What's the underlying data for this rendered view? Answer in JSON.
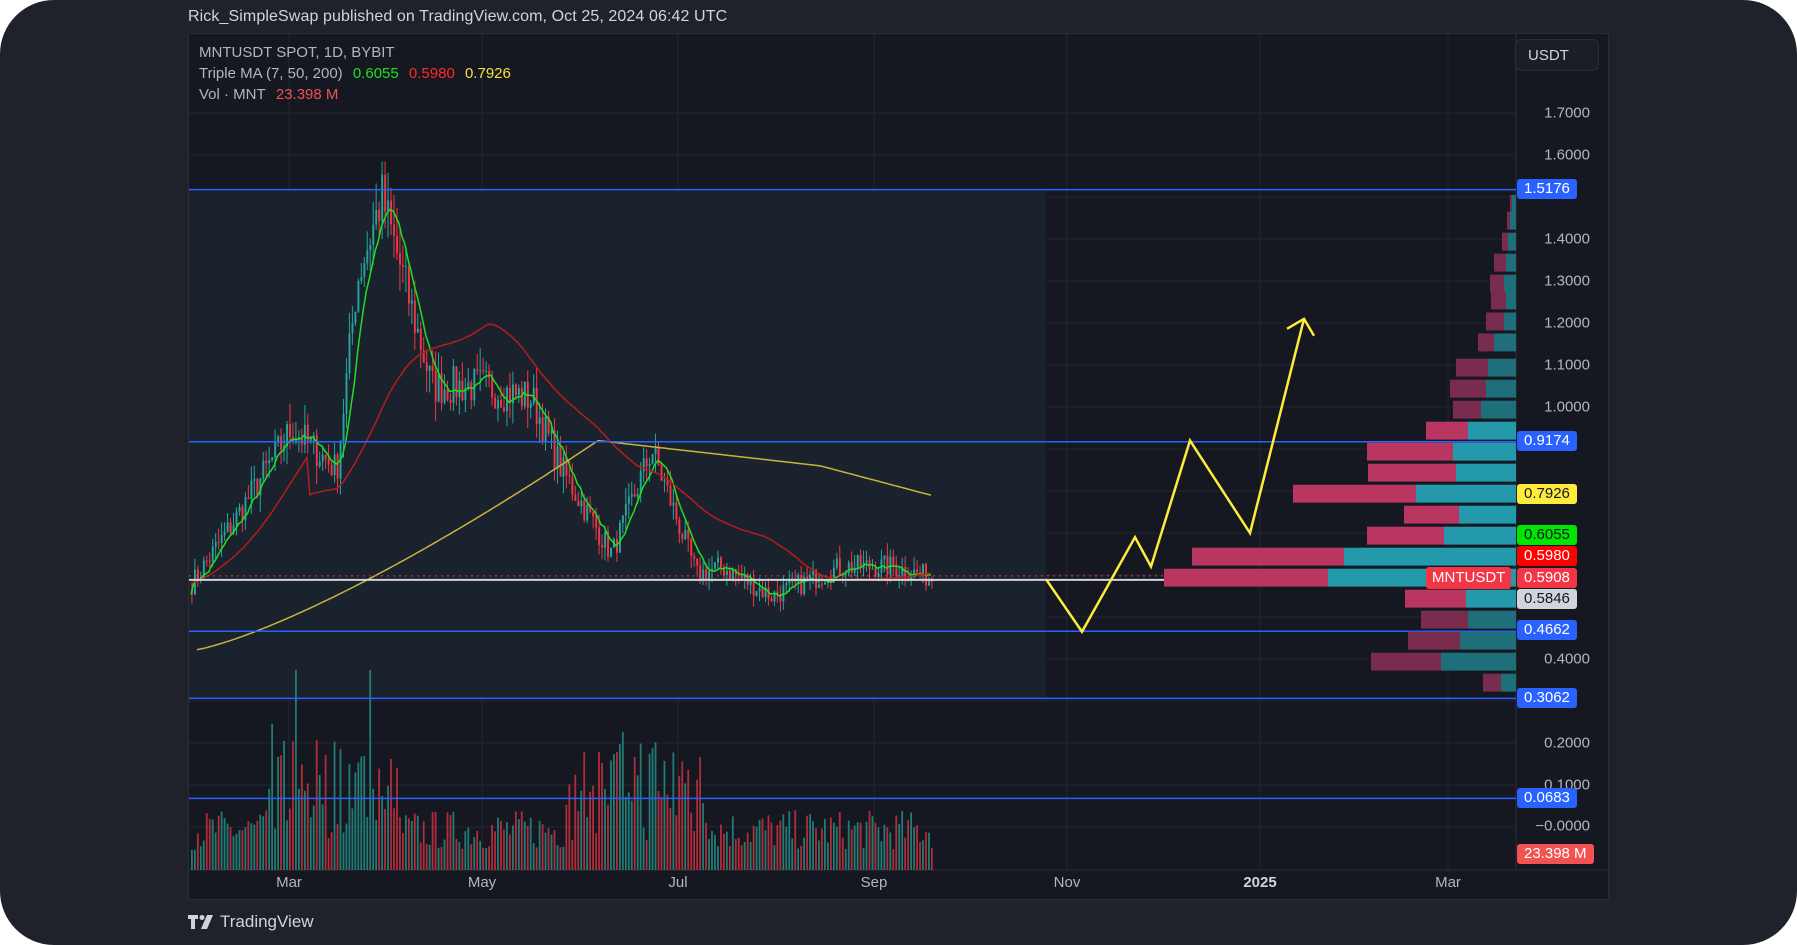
{
  "header": {
    "published": "Rick_SimpleSwap published on TradingView.com, Oct 25, 2024 06:42 UTC"
  },
  "legend": {
    "symbol": "MNTUSDT SPOT, 1D, BYBIT",
    "ma_label": "Triple MA (7, 50, 200)",
    "ma7": "0.6055",
    "ma50": "0.5980",
    "ma200": "0.7926",
    "vol_label": "Vol · MNT",
    "vol_value": "23.398 M"
  },
  "currency_button": "USDT",
  "price_axis": {
    "ticks": [
      "1.7000",
      "1.6000",
      "1.4000",
      "1.3000",
      "1.2000",
      "1.1000",
      "1.0000",
      "0.4000",
      "0.2000",
      "0.1000",
      "−0.0000"
    ],
    "labels": {
      "resistance_top": "1.5176",
      "resistance_mid": "0.9174",
      "ma200": "0.7926",
      "ma7": "0.6055",
      "ma50": "0.5980",
      "last_price": "0.5908",
      "prev_close": "0.5846",
      "support_1": "0.4662",
      "support_2": "0.3062",
      "support_3": "0.0683",
      "volume": "23.398 M"
    },
    "symbol_tag": "MNTUSDT"
  },
  "time_axis": {
    "labels": [
      "Mar",
      "May",
      "Jul",
      "Sep",
      "Nov",
      "2025",
      "Mar"
    ]
  },
  "colors": {
    "up": "#26a69a",
    "down": "#f23645",
    "ma7": "#1fe01f",
    "ma50": "#b71c1c",
    "ma200": "#c9b43a",
    "hline": "#2962ff",
    "projection": "#ffeb3b",
    "background": "#151821"
  },
  "footer": {
    "brand": "TradingView"
  },
  "chart_data": {
    "type": "candlestick",
    "title": "MNTUSDT SPOT, 1D, BYBIT",
    "xlabel": "",
    "ylabel": "USDT",
    "ylim": [
      -0.02,
      1.75
    ],
    "x_ticks": [
      "Mar",
      "May",
      "Jul",
      "Sep",
      "Nov",
      "2025",
      "Mar"
    ],
    "y_ticks": [
      0.0,
      0.1,
      0.2,
      0.3,
      0.4,
      0.5,
      0.6,
      0.7,
      0.8,
      0.9,
      1.0,
      1.1,
      1.2,
      1.3,
      1.4,
      1.5,
      1.6,
      1.7
    ],
    "approx_close_path": [
      {
        "x": "Feb mid",
        "close": 0.58
      },
      {
        "x": "Feb end",
        "close": 0.72
      },
      {
        "x": "Mar mid",
        "close": 0.95
      },
      {
        "x": "Mar end",
        "close": 0.85
      },
      {
        "x": "Apr start",
        "close": 1.3
      },
      {
        "x": "Apr mid",
        "close": 1.5
      },
      {
        "x": "Apr end",
        "close": 1.05
      },
      {
        "x": "May mid",
        "close": 1.05
      },
      {
        "x": "Jun start",
        "close": 1.02
      },
      {
        "x": "Jun mid",
        "close": 0.85
      },
      {
        "x": "Jun end",
        "close": 0.65
      },
      {
        "x": "Jul mid",
        "close": 0.9
      },
      {
        "x": "Aug start",
        "close": 0.6
      },
      {
        "x": "Aug mid",
        "close": 0.62
      },
      {
        "x": "Sep start",
        "close": 0.55
      },
      {
        "x": "Sep end",
        "close": 0.62
      },
      {
        "x": "Oct mid",
        "close": 0.62
      },
      {
        "x": "Oct 25",
        "close": 0.5908
      }
    ],
    "indicators": {
      "ma7": 0.6055,
      "ma50": 0.598,
      "ma200": 0.7926,
      "volume_last": "23.398 M"
    },
    "horizontal_levels": [
      1.5176,
      0.9174,
      0.4662,
      0.3062,
      0.0683
    ],
    "projection_path": [
      {
        "x": "Oct 25",
        "y": 0.59
      },
      {
        "x": "Nov start",
        "y": 0.47
      },
      {
        "x": "Nov mid",
        "y": 0.7
      },
      {
        "x": "Nov mid+",
        "y": 0.62
      },
      {
        "x": "Nov end",
        "y": 0.92
      },
      {
        "x": "Dec mid",
        "y": 0.72
      },
      {
        "x": "Jan start",
        "y": 1.22
      }
    ],
    "volume_profile": {
      "note": "Visible-range volume profile (up=teal, down=magenta), point of control near 0.59",
      "poc": 0.59
    },
    "grid": true,
    "legend_position": "top-left"
  }
}
